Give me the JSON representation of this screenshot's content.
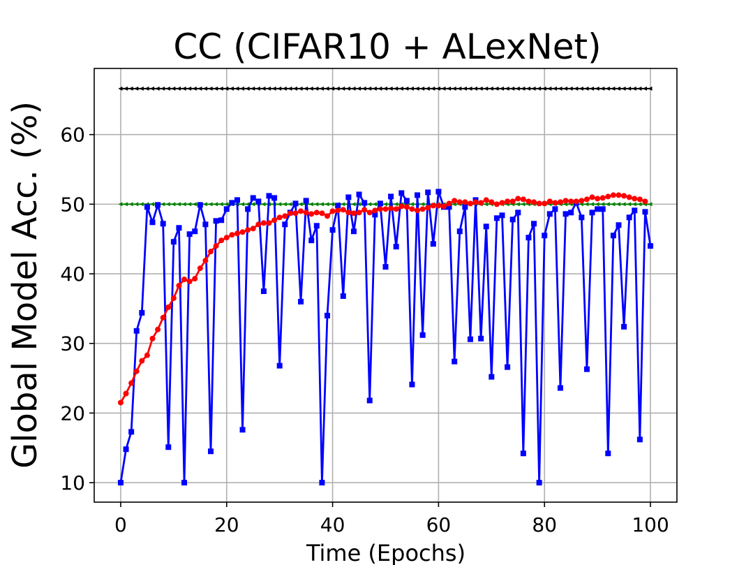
{
  "chart_data": {
    "type": "line",
    "title": "CC (CIFAR10 + ALexNet)",
    "xlabel": "Time (Epochs)",
    "ylabel": "Global Model Acc. (%)",
    "xlim": [
      -5,
      105
    ],
    "ylim": [
      7.2,
      69.5
    ],
    "xticks": [
      0,
      20,
      40,
      60,
      80,
      100
    ],
    "yticks": [
      10,
      20,
      30,
      40,
      50,
      60
    ],
    "grid": true,
    "series": [
      {
        "color": "#000000",
        "marker": "triangle-left",
        "x": [
          0,
          1,
          2,
          3,
          4,
          5,
          6,
          7,
          8,
          9,
          10,
          11,
          12,
          13,
          14,
          15,
          16,
          17,
          18,
          19,
          20,
          21,
          22,
          23,
          24,
          25,
          26,
          27,
          28,
          29,
          30,
          31,
          32,
          33,
          34,
          35,
          36,
          37,
          38,
          39,
          40,
          41,
          42,
          43,
          44,
          45,
          46,
          47,
          48,
          49,
          50,
          51,
          52,
          53,
          54,
          55,
          56,
          57,
          58,
          59,
          60,
          61,
          62,
          63,
          64,
          65,
          66,
          67,
          68,
          69,
          70,
          71,
          72,
          73,
          74,
          75,
          76,
          77,
          78,
          79,
          80,
          81,
          82,
          83,
          84,
          85,
          86,
          87,
          88,
          89,
          90,
          91,
          92,
          93,
          94,
          95,
          96,
          97,
          98,
          99,
          100
        ],
        "y": [
          66.6,
          66.6,
          66.6,
          66.6,
          66.6,
          66.6,
          66.6,
          66.6,
          66.6,
          66.6,
          66.6,
          66.6,
          66.6,
          66.6,
          66.6,
          66.6,
          66.6,
          66.6,
          66.6,
          66.6,
          66.6,
          66.6,
          66.6,
          66.6,
          66.6,
          66.6,
          66.6,
          66.6,
          66.6,
          66.6,
          66.6,
          66.6,
          66.6,
          66.6,
          66.6,
          66.6,
          66.6,
          66.6,
          66.6,
          66.6,
          66.6,
          66.6,
          66.6,
          66.6,
          66.6,
          66.6,
          66.6,
          66.6,
          66.6,
          66.6,
          66.6,
          66.6,
          66.6,
          66.6,
          66.6,
          66.6,
          66.6,
          66.6,
          66.6,
          66.6,
          66.6,
          66.6,
          66.6,
          66.6,
          66.6,
          66.6,
          66.6,
          66.6,
          66.6,
          66.6,
          66.6,
          66.6,
          66.6,
          66.6,
          66.6,
          66.6,
          66.6,
          66.6,
          66.6,
          66.6,
          66.6,
          66.6,
          66.6,
          66.6,
          66.6,
          66.6,
          66.6,
          66.6,
          66.6,
          66.6,
          66.6,
          66.6,
          66.6,
          66.6,
          66.6,
          66.6,
          66.6,
          66.6,
          66.6,
          66.6,
          66.6
        ]
      },
      {
        "color": "#008000",
        "marker": "triangle-left",
        "x": [
          0,
          1,
          2,
          3,
          4,
          5,
          6,
          7,
          8,
          9,
          10,
          11,
          12,
          13,
          14,
          15,
          16,
          17,
          18,
          19,
          20,
          21,
          22,
          23,
          24,
          25,
          26,
          27,
          28,
          29,
          30,
          31,
          32,
          33,
          34,
          35,
          36,
          37,
          38,
          39,
          40,
          41,
          42,
          43,
          44,
          45,
          46,
          47,
          48,
          49,
          50,
          51,
          52,
          53,
          54,
          55,
          56,
          57,
          58,
          59,
          60,
          61,
          62,
          63,
          64,
          65,
          66,
          67,
          68,
          69,
          70,
          71,
          72,
          73,
          74,
          75,
          76,
          77,
          78,
          79,
          80,
          81,
          82,
          83,
          84,
          85,
          86,
          87,
          88,
          89,
          90,
          91,
          92,
          93,
          94,
          95,
          96,
          97,
          98,
          99,
          100
        ],
        "y": [
          50,
          50,
          50,
          50,
          50,
          50,
          50,
          50,
          50,
          50,
          50,
          50,
          50,
          50,
          50,
          50,
          50,
          50,
          50,
          50,
          50,
          50,
          50,
          50,
          50,
          50,
          50,
          50,
          50,
          50,
          50,
          50,
          50,
          50,
          50,
          50,
          50,
          50,
          50,
          50,
          50,
          50,
          50,
          50,
          50,
          50,
          50,
          50,
          50,
          50,
          50,
          50,
          50,
          50,
          50,
          50,
          50,
          50,
          50,
          50,
          50,
          50,
          50,
          50,
          50,
          50,
          50,
          50,
          50,
          50,
          50,
          50,
          50,
          50,
          50,
          50,
          50,
          50,
          50,
          50,
          50,
          50,
          50,
          50,
          50,
          50,
          50,
          50,
          50,
          50,
          50,
          50,
          50,
          50,
          50,
          50,
          50,
          50,
          50,
          50,
          50
        ]
      },
      {
        "color": "#0000ff",
        "marker": "square",
        "x": [
          0,
          1,
          2,
          3,
          4,
          5,
          6,
          7,
          8,
          9,
          10,
          11,
          12,
          13,
          14,
          15,
          16,
          17,
          18,
          19,
          20,
          21,
          22,
          23,
          24,
          25,
          26,
          27,
          28,
          29,
          30,
          31,
          32,
          33,
          34,
          35,
          36,
          37,
          38,
          39,
          40,
          41,
          42,
          43,
          44,
          45,
          46,
          47,
          48,
          49,
          50,
          51,
          52,
          53,
          54,
          55,
          56,
          57,
          58,
          59,
          60,
          61,
          62,
          63,
          64,
          65,
          66,
          67,
          68,
          69,
          70,
          71,
          72,
          73,
          74,
          75,
          76,
          77,
          78,
          79,
          80,
          81,
          82,
          83,
          84,
          85,
          86,
          87,
          88,
          89,
          90,
          91,
          92,
          93,
          94,
          95,
          96,
          97,
          98,
          99,
          100
        ],
        "y": [
          10,
          14.8,
          17.3,
          31.8,
          34.4,
          49.6,
          47.4,
          49.9,
          47.2,
          15.1,
          44.6,
          46.6,
          10,
          45.7,
          46.1,
          49.9,
          47.1,
          14.5,
          47.6,
          47.7,
          49.3,
          50.2,
          50.6,
          17.6,
          49.3,
          50.9,
          50.4,
          37.5,
          51.2,
          50.9,
          26.8,
          47.1,
          48.8,
          50.1,
          36,
          50.5,
          44.8,
          46.9,
          10,
          34,
          46.3,
          49.8,
          36.8,
          51,
          46.1,
          51.4,
          50.2,
          21.8,
          48.5,
          50.1,
          41,
          51.1,
          43.9,
          51.6,
          50.5,
          24.1,
          51.3,
          31.2,
          51.7,
          44.3,
          51.8,
          49.6,
          49.6,
          27.4,
          46.1,
          49.6,
          30.6,
          50.6,
          30.7,
          46.8,
          25.2,
          48,
          48.4,
          26.6,
          47.8,
          48.8,
          14.2,
          45.2,
          47.2,
          10,
          45.5,
          48.6,
          49.3,
          23.6,
          48.6,
          48.8,
          50.2,
          48.1,
          26.3,
          48.8,
          49.3,
          49.3,
          14.2,
          45.5,
          47,
          32.4,
          48.1,
          49.1,
          16.2,
          48.9,
          44
        ]
      },
      {
        "color": "#ff0000",
        "marker": "circle",
        "x": [
          0,
          1,
          2,
          3,
          4,
          5,
          6,
          7,
          8,
          9,
          10,
          11,
          12,
          13,
          14,
          15,
          16,
          17,
          18,
          19,
          20,
          21,
          22,
          23,
          24,
          25,
          26,
          27,
          28,
          29,
          30,
          31,
          32,
          33,
          34,
          35,
          36,
          37,
          38,
          39,
          40,
          41,
          42,
          43,
          44,
          45,
          46,
          47,
          48,
          49,
          50,
          51,
          52,
          53,
          54,
          55,
          56,
          57,
          58,
          59,
          60,
          61,
          62,
          63,
          64,
          65,
          66,
          67,
          68,
          69,
          70,
          71,
          72,
          73,
          74,
          75,
          76,
          77,
          78,
          79,
          80,
          81,
          82,
          83,
          84,
          85,
          86,
          87,
          88,
          89,
          90,
          91,
          92,
          93,
          94,
          95,
          96,
          97,
          98,
          99
        ],
        "y": [
          21.5,
          22.8,
          24.3,
          26,
          27.5,
          28.3,
          30.7,
          32,
          33.7,
          35.2,
          36.5,
          38.3,
          39.2,
          38.9,
          39.3,
          40.8,
          41.9,
          43.2,
          44,
          44.8,
          45.2,
          45.6,
          45.8,
          46,
          46.3,
          46.5,
          47.1,
          47.3,
          47.3,
          47.7,
          48.1,
          48.3,
          48.7,
          48.7,
          49,
          48.8,
          48.6,
          48.8,
          48.7,
          48.3,
          49,
          49.1,
          49.2,
          48.8,
          48.7,
          48.8,
          49.2,
          48.8,
          49.1,
          49.3,
          49.3,
          49.4,
          49.3,
          49.7,
          49.6,
          49.3,
          49.1,
          49.3,
          49.5,
          49.8,
          49.8,
          49.7,
          50.1,
          50.5,
          50.3,
          50.3,
          50.1,
          50.3,
          50.2,
          50.6,
          50.3,
          50,
          50.2,
          50.4,
          50.4,
          50.8,
          50.7,
          50.4,
          50.3,
          50.1,
          50.1,
          50.4,
          50.2,
          50.3,
          50.5,
          50.4,
          50.4,
          50.5,
          50.7,
          51,
          50.8,
          50.9,
          51.1,
          51.3,
          51.3,
          51.2,
          51,
          50.8,
          50.7,
          50.4
        ]
      }
    ]
  }
}
